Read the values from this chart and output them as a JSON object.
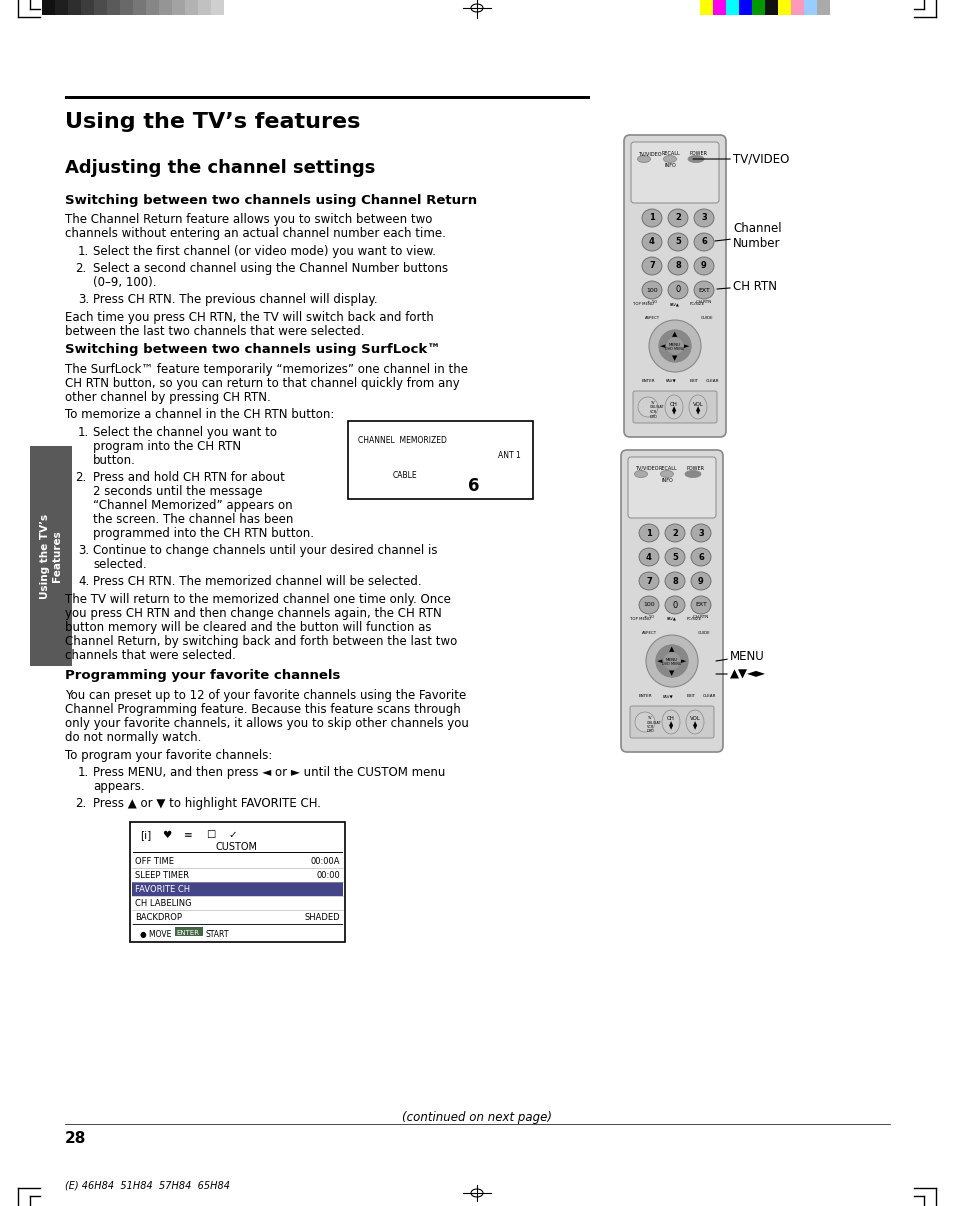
{
  "bg_color": "#ffffff",
  "title_bar_color": "#000000",
  "page_title": "Using the TV’s features",
  "section_title": "Adjusting the channel settings",
  "subsection1": "Switching between two channels using Channel Return",
  "subsection1_body1": "The Channel Return feature allows you to switch between two",
  "subsection1_body2": "channels without entering an actual channel number each time.",
  "subsection1_item1": "Select the first channel (or video mode) you want to view.",
  "subsection1_item2a": "Select a second channel using the Channel Number buttons",
  "subsection1_item2b": "(0–9, 100).",
  "subsection1_item3": "Press CH RTN. The previous channel will display.",
  "subsection1_tail1": "Each time you press CH RTN, the TV will switch back and forth",
  "subsection1_tail2": "between the last two channels that were selected.",
  "subsection2": "Switching between two channels using SurfLock™",
  "subsection2_body1": "The SurfLock™ feature temporarily “memorizes” one channel in the",
  "subsection2_body2": "CH RTN button, so you can return to that channel quickly from any",
  "subsection2_body3": "other channel by pressing CH RTN.",
  "subsection2_pre": "To memorize a channel in the CH RTN button:",
  "subsection2_item1a": "Select the channel you want to",
  "subsection2_item1b": "program into the CH RTN",
  "subsection2_item1c": "button.",
  "subsection2_item2a": "Press and hold CH RTN for about",
  "subsection2_item2b": "2 seconds until the message",
  "subsection2_item2c": "“Channel Memorized” appears on",
  "subsection2_item2d": "the screen. The channel has been",
  "subsection2_item2e": "programmed into the CH RTN button.",
  "subsection2_item3a": "Continue to change channels until your desired channel is",
  "subsection2_item3b": "selected.",
  "subsection2_item4": "Press CH RTN. The memorized channel will be selected.",
  "subsection2_tail1": "The TV will return to the memorized channel one time only. Once",
  "subsection2_tail2": "you press CH RTN and then change channels again, the CH RTN",
  "subsection2_tail3": "button memory will be cleared and the button will function as",
  "subsection2_tail4": "Channel Return, by switching back and forth between the last two",
  "subsection2_tail5": "channels that were selected.",
  "subsection3": "Programming your favorite channels",
  "subsection3_body1": "You can preset up to 12 of your favorite channels using the Favorite",
  "subsection3_body2": "Channel Programming feature. Because this feature scans through",
  "subsection3_body3": "only your favorite channels, it allows you to skip other channels you",
  "subsection3_body4": "do not normally watch.",
  "subsection3_pre": "To program your favorite channels:",
  "subsection3_item1a": "Press MENU, and then press ◄ or ► until the CUSTOM menu",
  "subsection3_item1b": "appears.",
  "subsection3_item2": "Press ▲ or ▼ to highlight FAVORITE CH.",
  "footer_text": "(continued on next page)",
  "page_number": "28",
  "sidebar_text": "Using the TV’s\nFeatures",
  "sidebar_color": "#595959",
  "label_tv_video": "TV/VIDEO",
  "label_channel_number": "Channel\nNumber",
  "label_ch_rtn": "CH RTN",
  "label_menu": "MENU",
  "label_arrows": "▲▼◄►",
  "bottom_text": "(E) 46H84  51H84  57H84  65H84",
  "remote_body_color": "#d8d8d8",
  "remote_edge_color": "#888888",
  "remote_btn_color": "#aaaaaa",
  "remote_btn_edge": "#666666",
  "remote_nav_color": "#bbbbbb",
  "remote_dark_color": "#888888"
}
